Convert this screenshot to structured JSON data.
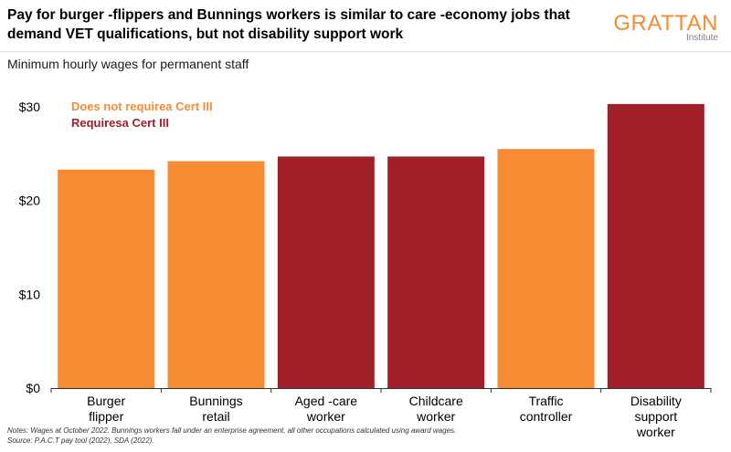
{
  "header": {
    "title": "Pay for burger -flippers and Bunnings workers is similar to care  -economy jobs that\ndemand VET qualifications, but not disability support work",
    "logo_main": "GRATTAN",
    "logo_sub": "Institute",
    "subtitle": "Minimum hourly wages for permanent staff"
  },
  "footer": {
    "notes": "Notes: Wages   at October 2022. Bunnings workers fall under an enterprise agreement, all other occupations calculated using award wages.",
    "source": "Source: P.A.C.T pay tool (2022), SDA (2022)."
  },
  "colors": {
    "orange": "#f68b33",
    "red": "#a01f29",
    "axis": "#333333"
  },
  "chart_data": {
    "type": "bar",
    "categories": [
      [
        "Burger",
        "flipper"
      ],
      [
        "Bunnings",
        "retail"
      ],
      [
        "Aged -care",
        "worker"
      ],
      [
        "Childcare",
        "worker"
      ],
      [
        "Traffic",
        "controller"
      ],
      [
        "Disability",
        "support",
        "worker"
      ]
    ],
    "values": [
      23.3,
      24.2,
      24.7,
      24.7,
      25.5,
      30.3
    ],
    "cert_required": [
      false,
      false,
      true,
      true,
      false,
      true
    ],
    "legend": [
      {
        "label": "Does not requirea Cert III",
        "color_key": "orange"
      },
      {
        "label": "Requiresa Cert III",
        "color_key": "red"
      }
    ],
    "ylim": [
      0,
      30
    ],
    "yticks": [
      0,
      10,
      20,
      30
    ],
    "ytick_labels": [
      "$0",
      "$10",
      "$20",
      "$30"
    ],
    "xlabel": "",
    "ylabel": "",
    "grid": false,
    "legend_placement": "top-left"
  }
}
